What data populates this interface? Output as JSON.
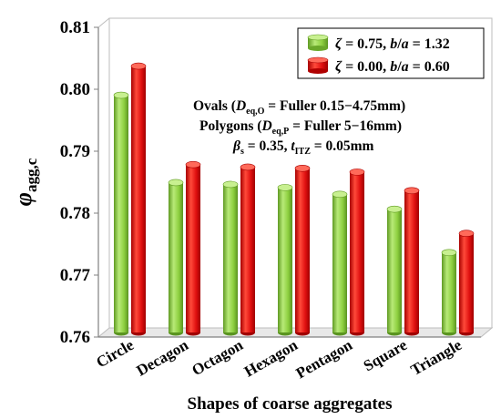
{
  "chart_data": {
    "type": "bar",
    "categories": [
      "Circle",
      "Decagon",
      "Octagon",
      "Hexagon",
      "Pentagon",
      "Square",
      "Triangle"
    ],
    "series": [
      {
        "name": "ζ = 0.75, b/a = 1.32",
        "color": "#8ed040",
        "values": [
          0.7983,
          0.7842,
          0.7839,
          0.7834,
          0.7823,
          0.7799,
          0.7729
        ]
      },
      {
        "name": "ζ = 0.00, b/a = 0.60",
        "color": "#e01010",
        "values": [
          0.803,
          0.7871,
          0.7867,
          0.7865,
          0.7859,
          0.7829,
          0.776
        ]
      }
    ],
    "ylim": [
      0.76,
      0.81
    ],
    "yticks": [
      "0.76",
      "0.77",
      "0.78",
      "0.79",
      "0.80",
      "0.81"
    ],
    "xlabel": "Shapes of coarse aggregates",
    "ylabel": "φ",
    "ylabel_sub": "agg,c",
    "legend_placement": "top-right",
    "grid": false
  },
  "legend": [
    {
      "zeta": "ζ",
      "zeta_val": " = 0.75, ",
      "b": "b",
      "slash": "/",
      "a": "a",
      "ratio": " = 1.32"
    },
    {
      "zeta": "ζ",
      "zeta_val": " = 0.00, ",
      "b": "b",
      "slash": "/",
      "a": "a",
      "ratio": " = 0.60"
    }
  ],
  "annotations": {
    "line1": {
      "pre": "Ovals (",
      "d": "D",
      "sub": "eq,O",
      "post": " = Fuller 0.15−4.75mm)"
    },
    "line2": {
      "pre": "Polygons (",
      "d": "D",
      "sub": "eq,P",
      "post": " = Fuller 5−16mm)"
    },
    "line3": {
      "beta": "β",
      "beta_sub": "s",
      "beta_val": " = 0.35, ",
      "t": "t",
      "t_sub": "ITZ",
      "t_val": " = 0.05mm"
    }
  }
}
